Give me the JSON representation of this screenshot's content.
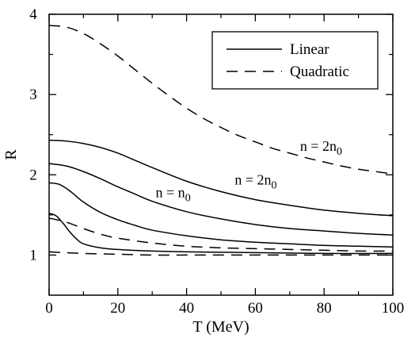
{
  "chart_data": {
    "type": "line",
    "xlabel": "T (MeV)",
    "ylabel": "R",
    "xlim": [
      0,
      100
    ],
    "ylim": [
      0.5,
      4
    ],
    "x_ticks": [
      0,
      20,
      40,
      60,
      80,
      100
    ],
    "y_ticks": [
      1,
      2,
      3,
      4
    ],
    "grid": false,
    "legend": {
      "placement": "top-right",
      "entries": [
        {
          "label": "Linear",
          "style": "solid"
        },
        {
          "label": "Quadratic",
          "style": "dashed"
        }
      ]
    },
    "annotations": [
      {
        "text": "n = n",
        "sub": "0",
        "x": 31,
        "y": 1.72
      },
      {
        "text": "n = 2n",
        "sub": "0",
        "x": 54,
        "y": 1.88
      },
      {
        "text": "n = 2n",
        "sub": "0",
        "x": 73,
        "y": 2.3
      }
    ],
    "series": [
      {
        "style": "solid",
        "x": [
          0,
          5,
          10,
          15,
          20,
          25,
          30,
          40,
          50,
          60,
          70,
          80,
          90,
          100
        ],
        "y": [
          2.43,
          2.42,
          2.39,
          2.34,
          2.27,
          2.18,
          2.09,
          1.92,
          1.79,
          1.69,
          1.62,
          1.56,
          1.52,
          1.49
        ]
      },
      {
        "style": "solid",
        "x": [
          0,
          5,
          10,
          15,
          20,
          25,
          30,
          40,
          50,
          60,
          70,
          80,
          90,
          100
        ],
        "y": [
          2.14,
          2.11,
          2.04,
          1.95,
          1.85,
          1.76,
          1.67,
          1.54,
          1.45,
          1.38,
          1.33,
          1.3,
          1.27,
          1.25
        ]
      },
      {
        "style": "solid",
        "x": [
          0,
          3,
          6,
          10,
          15,
          20,
          25,
          30,
          40,
          50,
          60,
          70,
          80,
          90,
          100
        ],
        "y": [
          1.9,
          1.88,
          1.8,
          1.66,
          1.53,
          1.44,
          1.37,
          1.31,
          1.24,
          1.19,
          1.16,
          1.14,
          1.12,
          1.11,
          1.1
        ]
      },
      {
        "style": "solid",
        "x": [
          0,
          2,
          4,
          6,
          8,
          10,
          15,
          20,
          30,
          40,
          60,
          80,
          100
        ],
        "y": [
          1.52,
          1.49,
          1.4,
          1.29,
          1.2,
          1.14,
          1.09,
          1.07,
          1.05,
          1.04,
          1.03,
          1.02,
          1.02
        ]
      },
      {
        "style": "dashed",
        "x": [
          0,
          5,
          10,
          15,
          20,
          25,
          30,
          35,
          40,
          45,
          50,
          55,
          60,
          65,
          70,
          75,
          80,
          85,
          90,
          95,
          100
        ],
        "y": [
          3.86,
          3.84,
          3.76,
          3.63,
          3.48,
          3.31,
          3.14,
          2.98,
          2.83,
          2.7,
          2.59,
          2.49,
          2.41,
          2.33,
          2.27,
          2.21,
          2.16,
          2.11,
          2.07,
          2.04,
          2.01
        ]
      },
      {
        "style": "dashed",
        "x": [
          0,
          5,
          10,
          15,
          20,
          30,
          40,
          50,
          60,
          70,
          80,
          90,
          100
        ],
        "y": [
          1.46,
          1.41,
          1.33,
          1.26,
          1.21,
          1.15,
          1.11,
          1.09,
          1.08,
          1.07,
          1.06,
          1.05,
          1.05
        ]
      },
      {
        "style": "dashed",
        "x": [
          0,
          10,
          20,
          30,
          40,
          60,
          80,
          100
        ],
        "y": [
          1.04,
          1.02,
          1.01,
          1.0,
          1.0,
          1.0,
          1.0,
          1.0
        ]
      }
    ]
  }
}
